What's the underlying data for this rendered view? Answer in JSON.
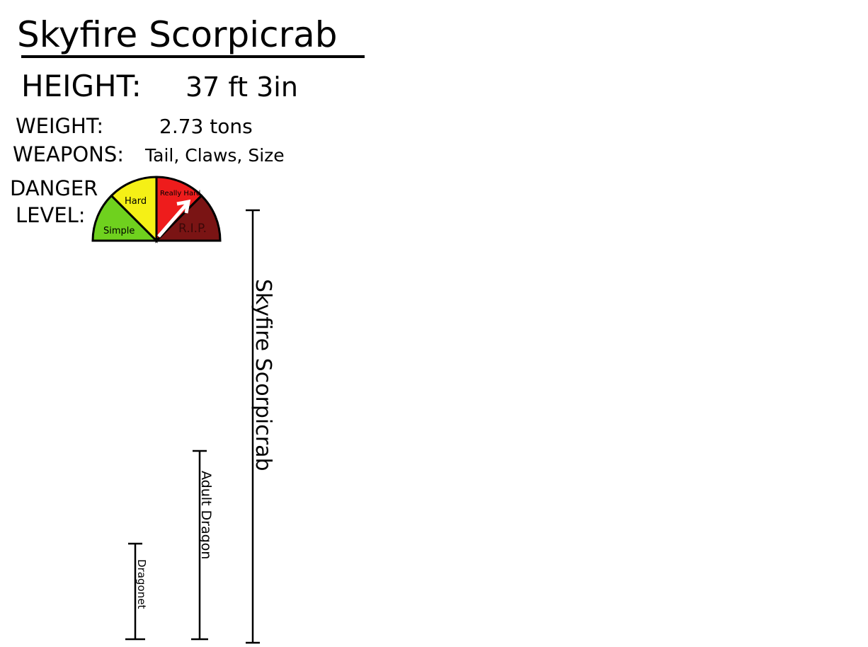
{
  "title": "Skyfire Scorpicrab",
  "stats": [
    {
      "label": "HEIGHT:",
      "value": "37 ft 3in"
    },
    {
      "label": "WEIGHT:",
      "value": "2.73 tons"
    },
    {
      "label": "WEAPONS:",
      "value": "Tail, Claws, Size"
    }
  ],
  "danger": {
    "label_line1": "DANGER",
    "label_line2": "LEVEL:",
    "levels": [
      "Simple",
      "Hard",
      "Really Hard",
      "R.I.P."
    ]
  },
  "size_comparison": [
    "Skyfire Scorpicrab",
    "Adult Dragon",
    "Dragonet"
  ]
}
